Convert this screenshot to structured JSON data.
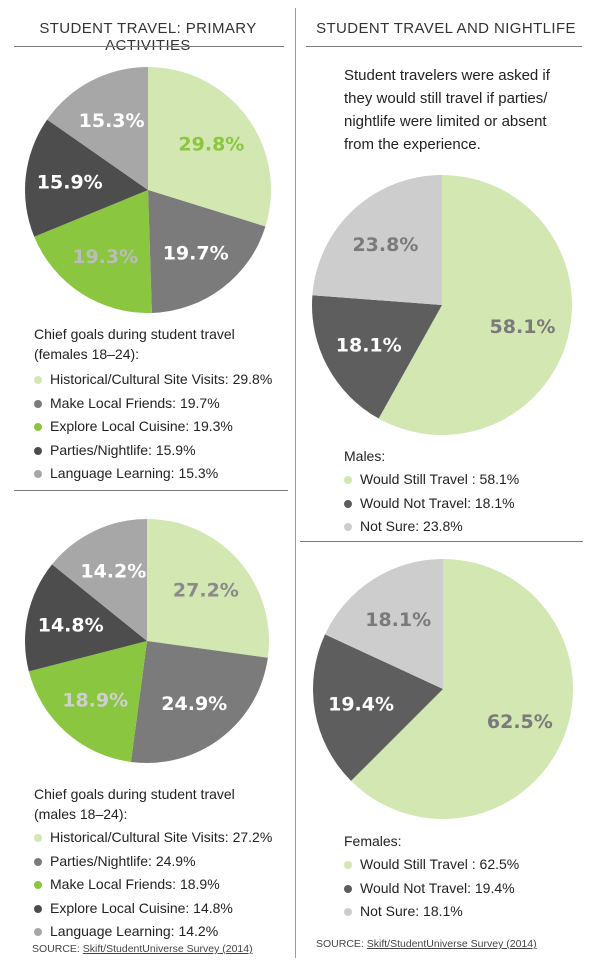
{
  "headers": {
    "left": "STUDENT TRAVEL: PRIMARY ACTIVITIES",
    "right": "STUDENT TRAVEL AND NIGHTLIFE"
  },
  "question": "Student travelers were asked if they would still travel if parties/ nightlife were limited or absent from the experience.",
  "source": {
    "prefix": "SOURCE: ",
    "link": "Skift/StudentUniverse Survey (2014)"
  },
  "colors": {
    "light_green": "#d3e7b3",
    "green": "#8bc640",
    "mid_gray": "#7b7b7b",
    "dark_gray": "#4d4d4d",
    "light_gray": "#a7a7a7",
    "pale_gray": "#cdcdcd"
  },
  "chart_data": [
    {
      "type": "pie",
      "caption_line1": "Chief goals during student travel",
      "caption_line2": "(females 18–24):",
      "slices": [
        {
          "label": "Historical/Cultural Site Visits",
          "value": 29.8,
          "display": "29.8%",
          "legend": "Historical/Cultural Site Visits: 29.8%",
          "color": "#d3e7b3",
          "text_color": "#8bc640"
        },
        {
          "label": "Make Local Friends",
          "value": 19.7,
          "display": "19.7%",
          "legend": "Make Local Friends: 19.7%",
          "color": "#7b7b7b",
          "text_color": "#ffffff"
        },
        {
          "label": "Explore Local Cuisine",
          "value": 19.3,
          "display": "19.3%",
          "legend": "Explore Local Cuisine: 19.3%",
          "color": "#8bc640",
          "text_color": "#bcbcbc"
        },
        {
          "label": "Parties/Nightlife",
          "value": 15.9,
          "display": "15.9%",
          "legend": "Parties/Nightlife: 15.9%",
          "color": "#4d4d4d",
          "text_color": "#ffffff"
        },
        {
          "label": "Language Learning",
          "value": 15.3,
          "display": "15.3%",
          "legend": "Language Learning: 15.3%",
          "color": "#a7a7a7",
          "text_color": "#ffffff"
        }
      ]
    },
    {
      "type": "pie",
      "caption_line1": "Chief goals during student travel",
      "caption_line2": "(males 18–24):",
      "slices": [
        {
          "label": "Historical/Cultural Site Visits",
          "value": 27.2,
          "display": "27.2%",
          "legend": "Historical/Cultural Site Visits: 27.2%",
          "color": "#d3e7b3",
          "text_color": "#8a8a8a"
        },
        {
          "label": "Parties/Nightlife",
          "value": 24.9,
          "display": "24.9%",
          "legend": "Parties/Nightlife: 24.9%",
          "color": "#7b7b7b",
          "text_color": "#ffffff"
        },
        {
          "label": "Make Local Friends",
          "value": 18.9,
          "display": "18.9%",
          "legend": "Make Local Friends: 18.9%",
          "color": "#8bc640",
          "text_color": "#cfcfcf"
        },
        {
          "label": "Explore Local Cuisine",
          "value": 14.8,
          "display": "14.8%",
          "legend": "Explore Local Cuisine: 14.8%",
          "color": "#4d4d4d",
          "text_color": "#ffffff"
        },
        {
          "label": "Language Learning",
          "value": 14.2,
          "display": "14.2%",
          "legend": "Language Learning: 14.2%",
          "color": "#a7a7a7",
          "text_color": "#ffffff"
        }
      ]
    },
    {
      "type": "pie",
      "caption_line1": "Males:",
      "slices": [
        {
          "label": "Would Still Travel",
          "value": 58.1,
          "display": "58.1%",
          "legend": "Would Still Travel : 58.1%",
          "color": "#d3e7b3",
          "text_color": "#7a7a7a"
        },
        {
          "label": "Would Not Travel",
          "value": 18.1,
          "display": "18.1%",
          "legend": "Would Not Travel: 18.1%",
          "color": "#5e5e5e",
          "text_color": "#ffffff"
        },
        {
          "label": "Not Sure",
          "value": 23.8,
          "display": "23.8%",
          "legend": "Not Sure: 23.8%",
          "color": "#cdcdcd",
          "text_color": "#7a7a7a"
        }
      ]
    },
    {
      "type": "pie",
      "caption_line1": "Females:",
      "slices": [
        {
          "label": "Would Still Travel",
          "value": 62.5,
          "display": "62.5%",
          "legend": "Would Still Travel : 62.5%",
          "color": "#d3e7b3",
          "text_color": "#7a7a7a"
        },
        {
          "label": "Would Not Travel",
          "value": 19.4,
          "display": "19.4%",
          "legend": "Would Not Travel: 19.4%",
          "color": "#5e5e5e",
          "text_color": "#ffffff"
        },
        {
          "label": "Not Sure",
          "value": 18.1,
          "display": "18.1%",
          "legend": "Not Sure: 18.1%",
          "color": "#cdcdcd",
          "text_color": "#7a7a7a"
        }
      ]
    }
  ]
}
